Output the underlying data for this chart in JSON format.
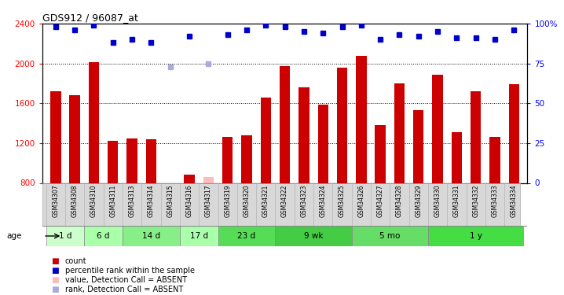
{
  "title": "GDS912 / 96087_at",
  "samples": [
    "GSM34307",
    "GSM34308",
    "GSM34310",
    "GSM34311",
    "GSM34313",
    "GSM34314",
    "GSM34315",
    "GSM34316",
    "GSM34317",
    "GSM34319",
    "GSM34320",
    "GSM34321",
    "GSM34322",
    "GSM34323",
    "GSM34324",
    "GSM34325",
    "GSM34326",
    "GSM34327",
    "GSM34328",
    "GSM34329",
    "GSM34330",
    "GSM34331",
    "GSM34332",
    "GSM34333",
    "GSM34334"
  ],
  "counts": [
    1720,
    1680,
    2010,
    1220,
    1250,
    1240,
    null,
    880,
    null,
    1260,
    1280,
    1660,
    1970,
    1760,
    1590,
    1960,
    2080,
    1380,
    1800,
    1530,
    1890,
    1310,
    1720,
    1260,
    1790
  ],
  "counts_absent": [
    null,
    null,
    null,
    null,
    null,
    null,
    790,
    null,
    860,
    null,
    null,
    null,
    null,
    null,
    null,
    null,
    null,
    null,
    null,
    null,
    null,
    null,
    null,
    null,
    null
  ],
  "percentile": [
    98,
    96,
    99,
    88,
    90,
    88,
    null,
    92,
    null,
    93,
    96,
    99,
    98,
    95,
    94,
    98,
    99,
    90,
    93,
    92,
    95,
    91,
    91,
    90,
    96
  ],
  "percentile_absent": [
    null,
    null,
    null,
    null,
    null,
    null,
    73,
    null,
    75,
    null,
    null,
    null,
    null,
    null,
    null,
    null,
    null,
    null,
    null,
    null,
    null,
    null,
    null,
    null,
    null
  ],
  "ylim_left": [
    800,
    2400
  ],
  "ylim_right": [
    0,
    100
  ],
  "yticks_left": [
    800,
    1200,
    1600,
    2000,
    2400
  ],
  "yticks_right": [
    0,
    25,
    50,
    75,
    100
  ],
  "age_groups": [
    {
      "label": "1 d",
      "start": 0,
      "end": 2,
      "color": "#ccffcc"
    },
    {
      "label": "6 d",
      "start": 2,
      "end": 4,
      "color": "#aaffaa"
    },
    {
      "label": "14 d",
      "start": 4,
      "end": 7,
      "color": "#88ee88"
    },
    {
      "label": "17 d",
      "start": 7,
      "end": 9,
      "color": "#aaffaa"
    },
    {
      "label": "23 d",
      "start": 9,
      "end": 12,
      "color": "#55dd55"
    },
    {
      "label": "9 wk",
      "start": 12,
      "end": 16,
      "color": "#44cc44"
    },
    {
      "label": "5 mo",
      "start": 16,
      "end": 20,
      "color": "#66dd66"
    },
    {
      "label": "1 y",
      "start": 20,
      "end": 25,
      "color": "#44dd44"
    }
  ],
  "bar_color": "#cc0000",
  "bar_color_absent": "#ffbbbb",
  "dot_color": "#0000cc",
  "dot_color_absent": "#aaaadd",
  "plot_bg": "#ffffff"
}
